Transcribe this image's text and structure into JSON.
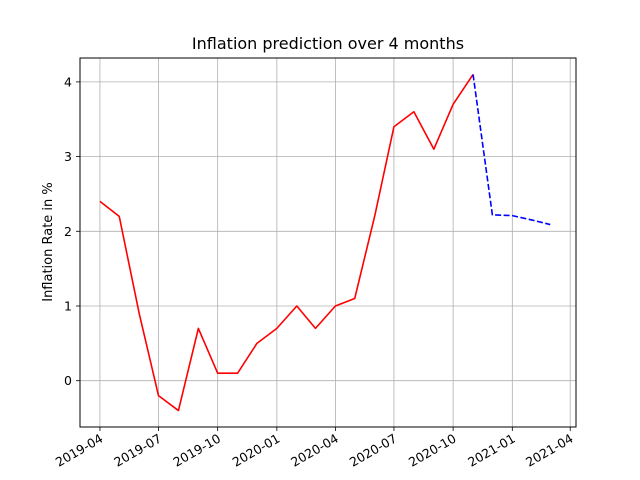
{
  "chart_data": {
    "type": "line",
    "title": "Inflation prediction over 4 months",
    "xlabel": "",
    "ylabel": "Inflation Rate in %",
    "x_axis_type": "date",
    "xlim": [
      "2019-03-01",
      "2021-04-10"
    ],
    "ylim": [
      -0.62,
      4.32
    ],
    "grid": true,
    "x_ticks": [
      "2019-04",
      "2019-07",
      "2019-10",
      "2020-01",
      "2020-04",
      "2020-07",
      "2020-10",
      "2021-01",
      "2021-04"
    ],
    "y_ticks": [
      0,
      1,
      2,
      3,
      4
    ],
    "series": [
      {
        "color": "#ff0000",
        "style": "solid",
        "x": [
          "2019-04-01",
          "2019-05-01",
          "2019-06-01",
          "2019-07-01",
          "2019-08-01",
          "2019-09-01",
          "2019-10-01",
          "2019-11-01",
          "2019-12-01",
          "2020-01-01",
          "2020-02-01",
          "2020-03-01",
          "2020-04-01",
          "2020-05-01",
          "2020-06-01",
          "2020-07-01",
          "2020-08-01",
          "2020-09-01",
          "2020-10-01",
          "2020-11-01"
        ],
        "values": [
          2.4,
          2.2,
          0.9,
          -0.2,
          -0.4,
          0.7,
          0.1,
          0.1,
          0.5,
          0.7,
          1.0,
          0.7,
          1.0,
          1.1,
          2.2,
          3.4,
          3.6,
          3.1,
          3.7,
          4.1
        ]
      },
      {
        "color": "#0000ff",
        "style": "dashed",
        "x": [
          "2020-11-01",
          "2020-12-01",
          "2021-01-01",
          "2021-02-01",
          "2021-03-01"
        ],
        "values": [
          4.1,
          2.22,
          2.21,
          2.15,
          2.09
        ]
      }
    ]
  }
}
